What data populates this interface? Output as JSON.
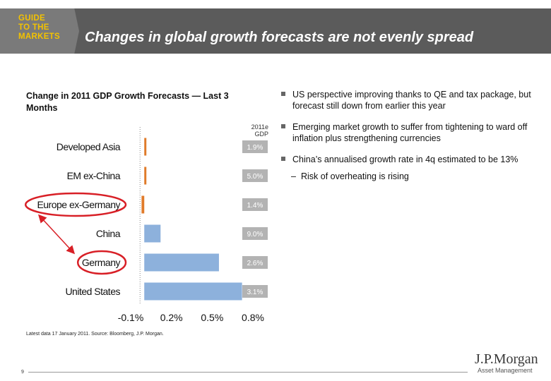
{
  "header": {
    "badge_lines": "GUIDE\nTO THE\nMARKETS",
    "title": "Changes in global growth forecasts are not evenly spread"
  },
  "chart_data": {
    "type": "bar",
    "orientation": "horizontal",
    "title": "Change in 2011 GDP Growth Forecasts — Last 3 Months",
    "categories": [
      "Developed Asia",
      "EM ex-China",
      "Europe ex-Germany",
      "China",
      "Germany",
      "United States"
    ],
    "values": [
      0.0,
      0.0,
      -0.02,
      0.12,
      0.55,
      0.72
    ],
    "bar_colors": [
      "#e07b2a",
      "#e07b2a",
      "#e07b2a",
      "#8db1dc",
      "#8db1dc",
      "#8db1dc"
    ],
    "gdp_header": "2011e\nGDP",
    "gdp_labels": [
      "1.9%",
      "5.0%",
      "1.4%",
      "9.0%",
      "2.6%",
      "3.1%"
    ],
    "x_ticks": [
      "-0.1%",
      "0.2%",
      "0.5%",
      "0.8%"
    ],
    "x_tick_values": [
      -0.1,
      0.2,
      0.5,
      0.8
    ],
    "xlim": [
      -0.1,
      0.8
    ],
    "highlighted": [
      "Europe ex-Germany",
      "Germany"
    ]
  },
  "bullets": [
    {
      "text": "US perspective improving thanks to QE and tax package, but forecast still down from earlier this year"
    },
    {
      "text": "Emerging market growth to suffer from tightening to ward off inflation plus strengthening currencies"
    },
    {
      "text": "China’s annualised growth rate in 4q estimated to be 13%"
    }
  ],
  "sub_bullet": {
    "dash": "–",
    "text": "Risk of overheating is rising"
  },
  "source": "Latest data 17 January 2011. Source: Bloomberg, J.P. Morgan.",
  "page_number": "9",
  "logo": {
    "main": "J.P.Morgan",
    "sub": "Asset Management"
  },
  "colors": {
    "header": "#5b5b5b",
    "badge_text": "#f3c200",
    "highlight": "#d81f26",
    "label_box": "#b3b3b3"
  }
}
